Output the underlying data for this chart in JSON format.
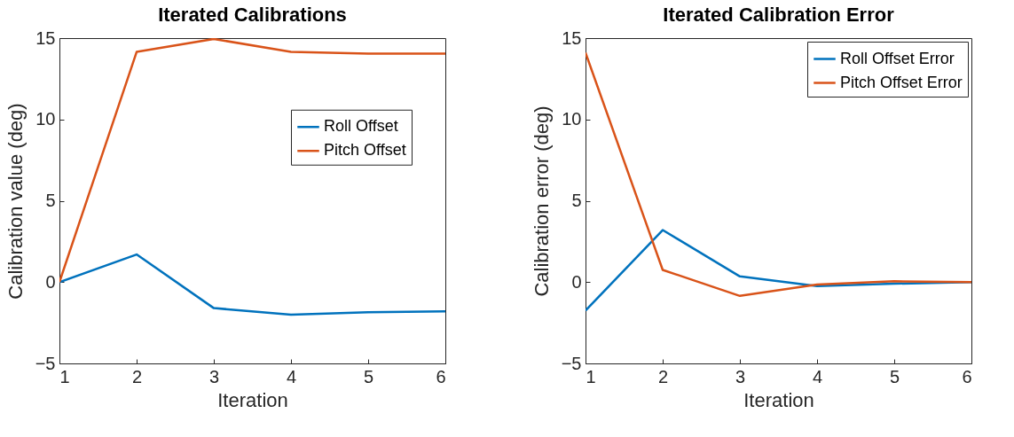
{
  "chart_data": [
    {
      "type": "line",
      "title": "Iterated Calibrations",
      "xlabel": "Iteration",
      "ylabel": "Calibration value (deg)",
      "x": [
        1,
        2,
        3,
        4,
        5,
        6
      ],
      "xlim": [
        1,
        6
      ],
      "xticks": [
        1,
        2,
        3,
        4,
        5,
        6
      ],
      "ylim": [
        -5,
        15
      ],
      "yticks": [
        -5,
        0,
        5,
        10,
        15
      ],
      "grid": false,
      "legend": "right",
      "series": [
        {
          "name": "Roll Offset",
          "color": "#0072bd",
          "values": [
            0,
            1.7,
            -1.6,
            -2.0,
            -1.85,
            -1.8
          ]
        },
        {
          "name": "Pitch Offset",
          "color": "#d95319",
          "values": [
            0,
            14.15,
            14.95,
            14.15,
            14.05,
            14.05
          ]
        }
      ]
    },
    {
      "type": "line",
      "title": "Iterated Calibration Error",
      "xlabel": "Iteration",
      "ylabel": "Calibration error (deg)",
      "x": [
        1,
        2,
        3,
        4,
        5,
        6
      ],
      "xlim": [
        1,
        6
      ],
      "xticks": [
        1,
        2,
        3,
        4,
        5,
        6
      ],
      "ylim": [
        -5,
        15
      ],
      "yticks": [
        -5,
        0,
        5,
        10,
        15
      ],
      "grid": false,
      "legend": "top right",
      "series": [
        {
          "name": "Roll Offset Error",
          "color": "#0072bd",
          "values": [
            -1.75,
            3.2,
            0.35,
            -0.25,
            -0.1,
            0
          ]
        },
        {
          "name": "Pitch Offset Error",
          "color": "#d95319",
          "values": [
            14.1,
            0.75,
            -0.85,
            -0.15,
            0.05,
            0
          ]
        }
      ]
    }
  ]
}
